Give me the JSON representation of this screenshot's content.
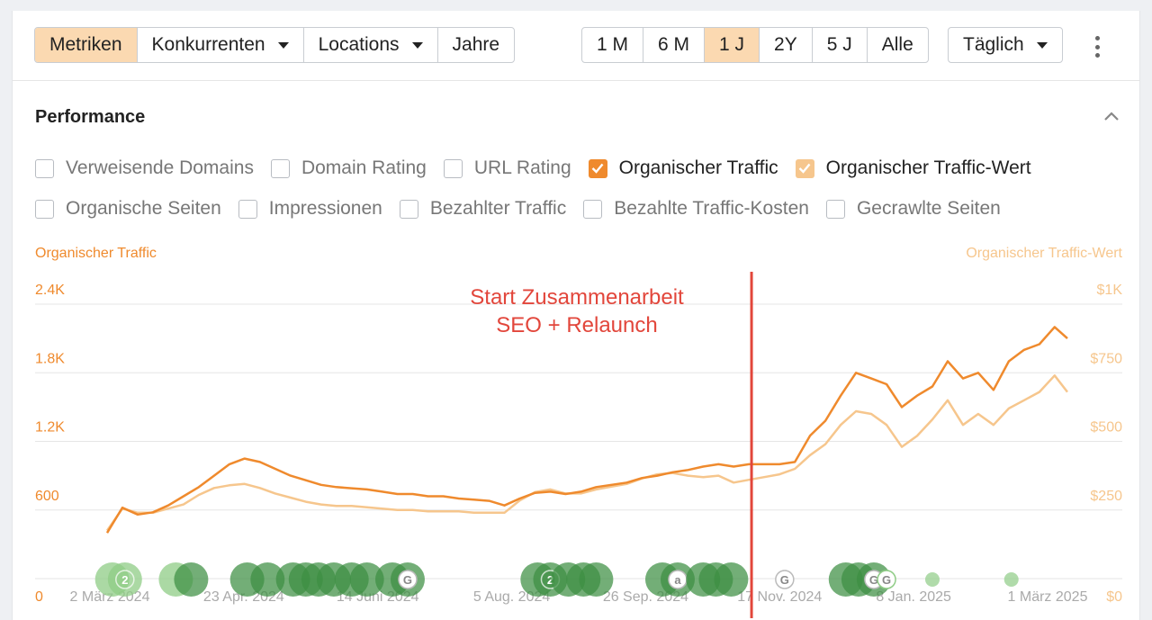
{
  "toolbar": {
    "tabs": [
      {
        "label": "Metriken",
        "active": true
      },
      {
        "label": "Konkurrenten",
        "dropdown": true
      },
      {
        "label": "Locations",
        "dropdown": true
      },
      {
        "label": "Jahre"
      }
    ],
    "ranges": [
      {
        "label": "1 M"
      },
      {
        "label": "6 M"
      },
      {
        "label": "1 J",
        "active": true
      },
      {
        "label": "2Y"
      },
      {
        "label": "5 J"
      },
      {
        "label": "Alle"
      }
    ],
    "interval": "Täglich"
  },
  "section": {
    "title": "Performance"
  },
  "metrics_row1": [
    {
      "label": "Verweisende Domains",
      "checked": false
    },
    {
      "label": "Domain Rating",
      "checked": false
    },
    {
      "label": "URL Rating",
      "checked": false
    },
    {
      "label": "Organischer Traffic",
      "checked": true,
      "color": "#ef8a2d"
    },
    {
      "label": "Organischer Traffic-Wert",
      "checked": true,
      "color": "#f6c68d"
    }
  ],
  "metrics_row2": [
    {
      "label": "Organische Seiten",
      "checked": false
    },
    {
      "label": "Impressionen",
      "checked": false
    },
    {
      "label": "Bezahlter Traffic",
      "checked": false
    },
    {
      "label": "Bezahlte Traffic-Kosten",
      "checked": false
    },
    {
      "label": "Gecrawlte Seiten",
      "checked": false
    }
  ],
  "annotation": {
    "line1": "Start Zusammenarbeit",
    "line2": "SEO + Relaunch",
    "color": "#e2463b"
  },
  "colors": {
    "traffic": "#ef8a2d",
    "value": "#f6c68d",
    "axis_left": "#ef8a2d",
    "axis_right": "#f6c68d",
    "marker": "#3d8f43",
    "marker_light": "#8fcc86"
  },
  "chart_data": {
    "type": "line",
    "left_axis_title": "Organischer Traffic",
    "right_axis_title": "Organischer Traffic-Wert",
    "left_ticks": [
      "0",
      "600",
      "1.2K",
      "1.8K",
      "2.4K"
    ],
    "right_ticks": [
      "$0",
      "$250",
      "$500",
      "$750",
      "$1K"
    ],
    "ylim_left": [
      0,
      2400
    ],
    "ylim_right": [
      0,
      1000
    ],
    "x_labels": [
      "2 März 2024",
      "23 Apr. 2024",
      "14 Juni 2024",
      "5 Aug. 2024",
      "26 Sep. 2024",
      "17 Nov. 2024",
      "8 Jan. 2025",
      "1 März 2025"
    ],
    "x_range": [
      "2024-03-02",
      "2025-03-14"
    ],
    "annotation_date": "2024-11-10",
    "series": [
      {
        "name": "Organischer Traffic",
        "axis": "left",
        "x": [
          "2024-03-02",
          "2024-03-08",
          "2024-03-14",
          "2024-03-20",
          "2024-03-26",
          "2024-04-01",
          "2024-04-07",
          "2024-04-13",
          "2024-04-19",
          "2024-04-25",
          "2024-05-01",
          "2024-05-07",
          "2024-05-13",
          "2024-05-19",
          "2024-05-25",
          "2024-05-31",
          "2024-06-06",
          "2024-06-12",
          "2024-06-18",
          "2024-06-24",
          "2024-06-30",
          "2024-07-06",
          "2024-07-12",
          "2024-07-18",
          "2024-07-24",
          "2024-07-30",
          "2024-08-05",
          "2024-08-11",
          "2024-08-17",
          "2024-08-23",
          "2024-08-29",
          "2024-09-04",
          "2024-09-10",
          "2024-09-16",
          "2024-09-22",
          "2024-09-28",
          "2024-10-04",
          "2024-10-10",
          "2024-10-16",
          "2024-10-22",
          "2024-10-28",
          "2024-11-03",
          "2024-11-09",
          "2024-11-15",
          "2024-11-21",
          "2024-11-27",
          "2024-12-03",
          "2024-12-09",
          "2024-12-15",
          "2024-12-21",
          "2024-12-27",
          "2025-01-02",
          "2025-01-08",
          "2025-01-14",
          "2025-01-20",
          "2025-01-26",
          "2025-02-01",
          "2025-02-07",
          "2025-02-13",
          "2025-02-19",
          "2025-02-25",
          "2025-03-03",
          "2025-03-09",
          "2025-03-14"
        ],
        "values": [
          400,
          620,
          560,
          580,
          640,
          720,
          800,
          900,
          1000,
          1050,
          1020,
          960,
          900,
          860,
          820,
          800,
          790,
          780,
          760,
          740,
          740,
          720,
          720,
          700,
          690,
          680,
          640,
          700,
          750,
          760,
          740,
          760,
          800,
          820,
          840,
          880,
          900,
          930,
          950,
          980,
          1000,
          980,
          1000,
          1000,
          1000,
          1020,
          1250,
          1380,
          1600,
          1800,
          1750,
          1700,
          1500,
          1600,
          1680,
          1900,
          1750,
          1800,
          1650,
          1900,
          2000,
          2050,
          2200,
          2100
        ]
      },
      {
        "name": "Organischer Traffic-Wert",
        "axis": "right",
        "x": [
          "2024-03-02",
          "2024-03-08",
          "2024-03-14",
          "2024-03-20",
          "2024-03-26",
          "2024-04-01",
          "2024-04-07",
          "2024-04-13",
          "2024-04-19",
          "2024-04-25",
          "2024-05-01",
          "2024-05-07",
          "2024-05-13",
          "2024-05-19",
          "2024-05-25",
          "2024-05-31",
          "2024-06-06",
          "2024-06-12",
          "2024-06-18",
          "2024-06-24",
          "2024-06-30",
          "2024-07-06",
          "2024-07-12",
          "2024-07-18",
          "2024-07-24",
          "2024-07-30",
          "2024-08-05",
          "2024-08-11",
          "2024-08-17",
          "2024-08-23",
          "2024-08-29",
          "2024-09-04",
          "2024-09-10",
          "2024-09-16",
          "2024-09-22",
          "2024-09-28",
          "2024-10-04",
          "2024-10-10",
          "2024-10-16",
          "2024-10-22",
          "2024-10-28",
          "2024-11-03",
          "2024-11-09",
          "2024-11-15",
          "2024-11-21",
          "2024-11-27",
          "2024-12-03",
          "2024-12-09",
          "2024-12-15",
          "2024-12-21",
          "2024-12-27",
          "2025-01-02",
          "2025-01-08",
          "2025-01-14",
          "2025-01-20",
          "2025-01-26",
          "2025-02-01",
          "2025-02-07",
          "2025-02-13",
          "2025-02-19",
          "2025-02-25",
          "2025-03-03",
          "2025-03-09",
          "2025-03-14"
        ],
        "values": [
          175,
          255,
          240,
          240,
          255,
          270,
          305,
          330,
          340,
          345,
          330,
          310,
          295,
          280,
          270,
          265,
          265,
          260,
          255,
          250,
          250,
          245,
          245,
          245,
          240,
          240,
          240,
          285,
          315,
          325,
          310,
          310,
          325,
          335,
          345,
          365,
          380,
          385,
          375,
          370,
          375,
          350,
          360,
          370,
          380,
          400,
          450,
          490,
          560,
          610,
          600,
          560,
          480,
          520,
          580,
          650,
          560,
          600,
          560,
          620,
          650,
          680,
          740,
          680
        ]
      }
    ],
    "event_markers": [
      {
        "date": "2024-03-04",
        "label": "",
        "style": "light"
      },
      {
        "date": "2024-03-09",
        "label": "2",
        "style": "light"
      },
      {
        "date": "2024-03-29",
        "label": "",
        "style": "light"
      },
      {
        "date": "2024-04-04",
        "label": "",
        "style": "dark"
      },
      {
        "date": "2024-04-26",
        "label": "",
        "style": "dark"
      },
      {
        "date": "2024-05-04",
        "label": "",
        "style": "dark"
      },
      {
        "date": "2024-05-14",
        "label": "",
        "style": "dark"
      },
      {
        "date": "2024-05-19",
        "label": "",
        "style": "dark"
      },
      {
        "date": "2024-05-24",
        "label": "",
        "style": "dark"
      },
      {
        "date": "2024-05-30",
        "label": "",
        "style": "dark"
      },
      {
        "date": "2024-06-06",
        "label": "",
        "style": "dark"
      },
      {
        "date": "2024-06-12",
        "label": "",
        "style": "dark"
      },
      {
        "date": "2024-06-22",
        "label": "",
        "style": "dark"
      },
      {
        "date": "2024-06-28",
        "label": "G",
        "style": "white"
      },
      {
        "date": "2024-08-18",
        "label": "",
        "style": "dark"
      },
      {
        "date": "2024-08-23",
        "label": "2",
        "style": "dark"
      },
      {
        "date": "2024-08-30",
        "label": "",
        "style": "dark"
      },
      {
        "date": "2024-09-05",
        "label": "",
        "style": "dark"
      },
      {
        "date": "2024-09-10",
        "label": "",
        "style": "dark"
      },
      {
        "date": "2024-10-06",
        "label": "",
        "style": "dark"
      },
      {
        "date": "2024-10-12",
        "label": "a",
        "style": "white"
      },
      {
        "date": "2024-10-22",
        "label": "",
        "style": "dark"
      },
      {
        "date": "2024-10-27",
        "label": "",
        "style": "dark"
      },
      {
        "date": "2024-11-02",
        "label": "",
        "style": "dark"
      },
      {
        "date": "2024-11-23",
        "label": "G",
        "style": "outline"
      },
      {
        "date": "2024-12-17",
        "label": "",
        "style": "dark"
      },
      {
        "date": "2024-12-22",
        "label": "",
        "style": "dark"
      },
      {
        "date": "2024-12-28",
        "label": "G",
        "style": "white"
      },
      {
        "date": "2025-01-02",
        "label": "G",
        "style": "outline-light"
      },
      {
        "date": "2025-01-20",
        "label": "",
        "style": "small"
      },
      {
        "date": "2025-02-20",
        "label": "",
        "style": "small"
      }
    ]
  }
}
